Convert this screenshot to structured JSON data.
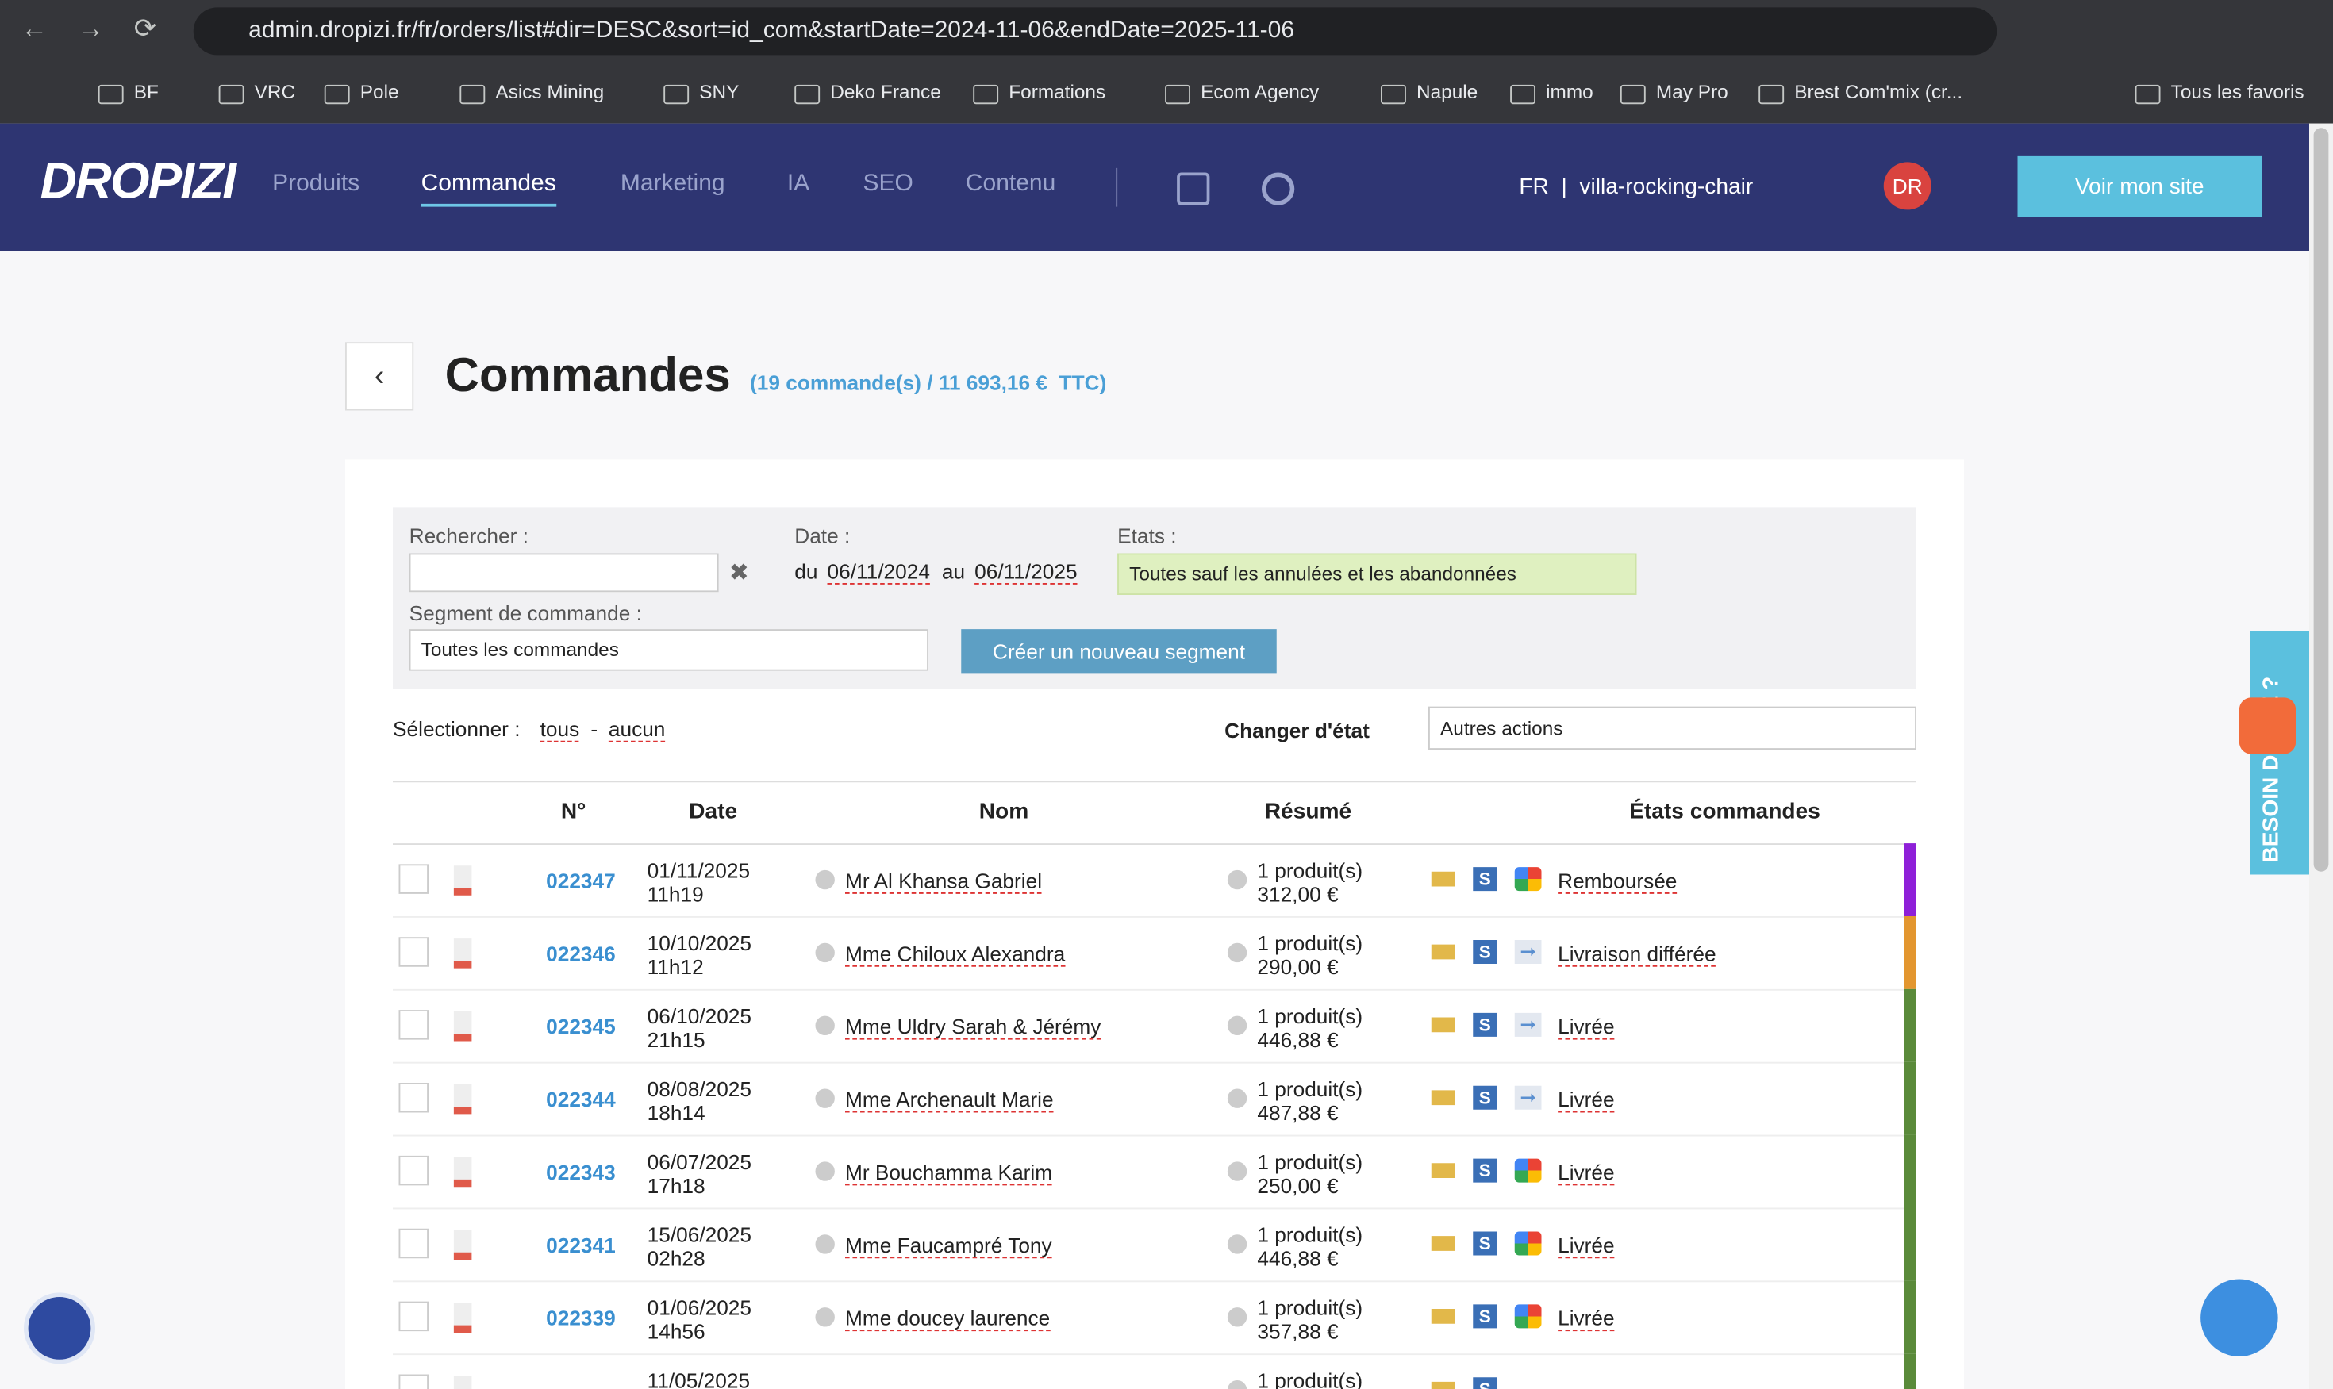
{
  "browser": {
    "url": "admin.dropizi.fr/fr/orders/list#dir=DESC&sort=id_com&startDate=2024-11-06&endDate=2025-11-06",
    "bookmarks": [
      "BF",
      "VRC",
      "Pole",
      "Asics Mining",
      "SNY",
      "Deko France",
      "Formations",
      "Ecom Agency",
      "Napule",
      "immo",
      "May Pro",
      "Brest Com'mix (cr...",
      "Tous les favoris"
    ]
  },
  "nav": {
    "logo": "DROPIZI",
    "items": [
      "Produits",
      "Commandes",
      "Marketing",
      "IA",
      "SEO",
      "Contenu"
    ],
    "active": 1,
    "lang": "FR  |  villa-rocking-chair",
    "avatar": "DR",
    "cta": "Voir mon site"
  },
  "page": {
    "title": "Commandes",
    "summary": "(19 commande(s) / 11 693,16 €  TTC)"
  },
  "filters": {
    "search_label": "Rechercher :",
    "date_label": "Date :",
    "date_from_prefix": "du",
    "date_from": "06/11/2024",
    "date_to_prefix": "au",
    "date_to": "06/11/2025",
    "states_label": "Etats :",
    "states_value": "Toutes sauf les annulées et les abandonnées",
    "segment_label": "Segment de commande :",
    "segment_value": "Toutes les commandes",
    "new_segment": "Créer un nouveau segment"
  },
  "selection": {
    "label": "Sélectionner :",
    "all": "tous",
    "separator": "-",
    "none": "aucun",
    "change_state": "Changer d'état",
    "other_actions": "Autres actions"
  },
  "table": {
    "headers": [
      "N°",
      "Date",
      "Nom",
      "Résumé",
      "États commandes"
    ],
    "rows": [
      {
        "id": "022347",
        "date": "01/11/2025",
        "time": "11h19",
        "name": "Mr Al Khansa Gabriel",
        "summary": "1 produit(s)",
        "total": "312,00 €",
        "source": "google",
        "status": "Remboursée",
        "color": "#8e1fd8"
      },
      {
        "id": "022346",
        "date": "10/10/2025",
        "time": "11h12",
        "name": "Mme Chiloux Alexandra",
        "summary": "1 produit(s)",
        "total": "290,00 €",
        "source": "arrow",
        "status": "Livraison différée",
        "color": "#e3962f"
      },
      {
        "id": "022345",
        "date": "06/10/2025",
        "time": "21h15",
        "name": "Mme Uldry Sarah & Jérémy",
        "summary": "1 produit(s)",
        "total": "446,88 €",
        "source": "arrow",
        "status": "Livrée",
        "color": "#5a8a3a"
      },
      {
        "id": "022344",
        "date": "08/08/2025",
        "time": "18h14",
        "name": "Mme Archenault Marie",
        "summary": "1 produit(s)",
        "total": "487,88 €",
        "source": "arrow",
        "status": "Livrée",
        "color": "#5a8a3a"
      },
      {
        "id": "022343",
        "date": "06/07/2025",
        "time": "17h18",
        "name": "Mr Bouchamma Karim",
        "summary": "1 produit(s)",
        "total": "250,00 €",
        "source": "google",
        "status": "Livrée",
        "color": "#5a8a3a"
      },
      {
        "id": "022341",
        "date": "15/06/2025",
        "time": "02h28",
        "name": "Mme Faucampré Tony",
        "summary": "1 produit(s)",
        "total": "446,88 €",
        "source": "google",
        "status": "Livrée",
        "color": "#5a8a3a"
      },
      {
        "id": "022339",
        "date": "01/06/2025",
        "time": "14h56",
        "name": "Mme doucey laurence",
        "summary": "1 produit(s)",
        "total": "357,88 €",
        "source": "google",
        "status": "Livrée",
        "color": "#5a8a3a"
      }
    ],
    "partial_row": {
      "date": "11/05/2025",
      "summary": "1 produit(s)",
      "color": "#5a8a3a"
    }
  },
  "help_tab": "BESOIN D'AIDE ?"
}
